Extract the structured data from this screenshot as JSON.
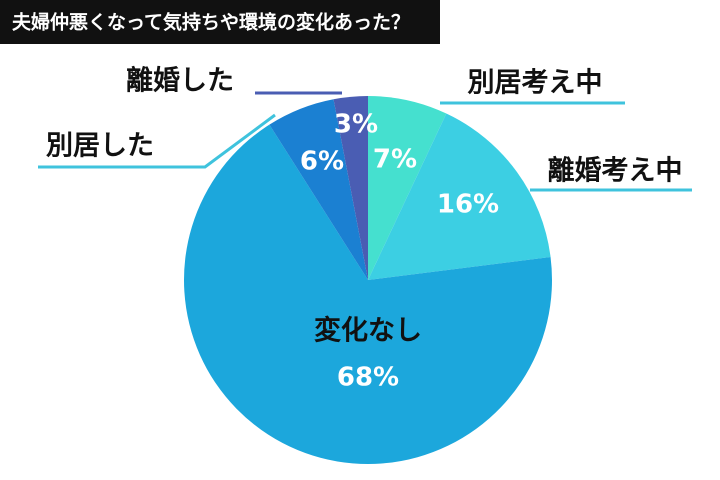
{
  "chart_data": {
    "type": "pie",
    "title": "夫婦仲悪くなって気持ちや環境の変化あった？",
    "categories": [
      "別居考え中",
      "離婚考え中",
      "変化なし",
      "別居した",
      "離婚した"
    ],
    "values": [
      7,
      16,
      68,
      6,
      3
    ],
    "value_labels": [
      "7%",
      "16%",
      "68%",
      "6%",
      "3%"
    ],
    "colors": [
      "#45e0cf",
      "#3ccfe3",
      "#1ca7dc",
      "#1b80d2",
      "#4a5db3"
    ]
  }
}
